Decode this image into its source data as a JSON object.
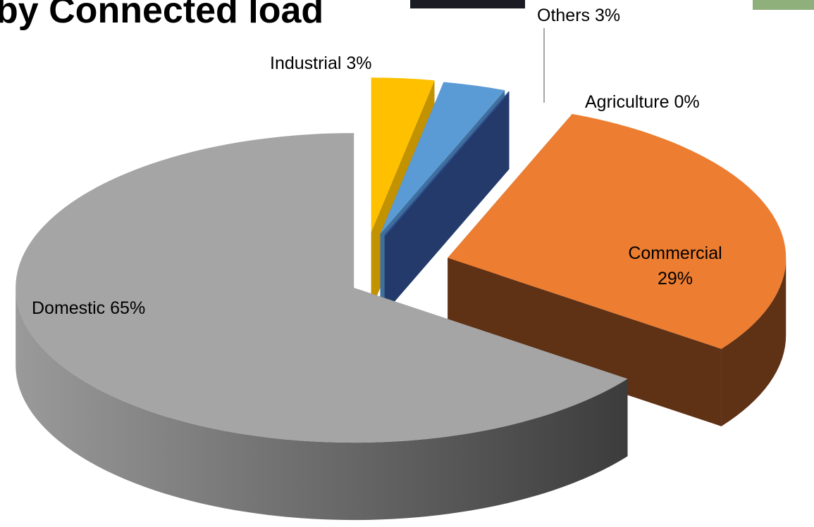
{
  "chart_data": {
    "type": "pie3d",
    "title": "by Connected load",
    "categories": [
      "Industrial",
      "Others",
      "Agriculture",
      "Commercial",
      "Domestic"
    ],
    "values": [
      3,
      3,
      0,
      29,
      65
    ],
    "value_labels": [
      "3%",
      "3%",
      "0%",
      "29%",
      "65%"
    ],
    "colors": [
      "#ffc000",
      "#5b9bd5",
      "#2f4f8f",
      "#ed7d31",
      "#a5a5a5"
    ],
    "side_colors": [
      "#c29200",
      "#3f6f9c",
      "#233a6b",
      "#5f3115",
      "#6e6e6e"
    ]
  }
}
